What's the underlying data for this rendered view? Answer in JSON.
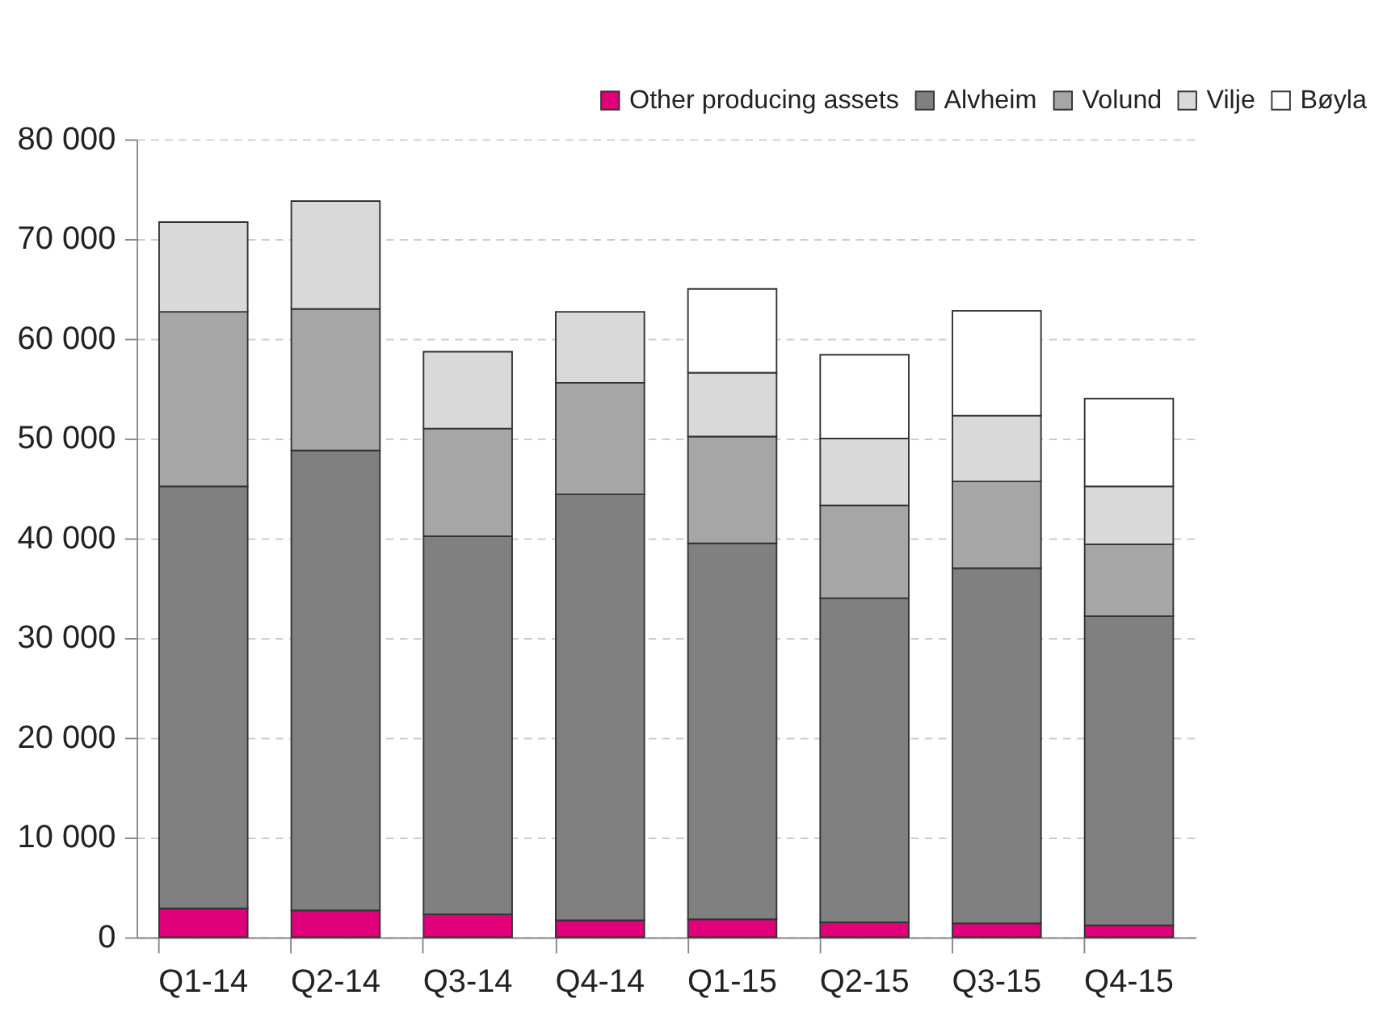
{
  "chart_data": {
    "type": "bar",
    "stacked": true,
    "categories": [
      "Q1-14",
      "Q2-14",
      "Q3-14",
      "Q4-14",
      "Q1-15",
      "Q2-15",
      "Q3-15",
      "Q4-15"
    ],
    "series": [
      {
        "name": "Other producing assets",
        "color": "#e0007a",
        "values": [
          2900,
          2700,
          2300,
          1700,
          1800,
          1500,
          1400,
          1200
        ]
      },
      {
        "name": "Alvheim",
        "color": "#808080",
        "values": [
          42300,
          46100,
          37900,
          42700,
          37700,
          32500,
          35600,
          31000
        ]
      },
      {
        "name": "Volund",
        "color": "#a6a6a6",
        "values": [
          17500,
          14200,
          10800,
          11200,
          10700,
          9300,
          8700,
          7200
        ]
      },
      {
        "name": "Vilje",
        "color": "#d9d9d9",
        "values": [
          9000,
          10800,
          7700,
          7100,
          6400,
          6700,
          6600,
          5800
        ]
      },
      {
        "name": "Bøyla",
        "color": "#ffffff",
        "values": [
          null,
          null,
          null,
          null,
          8400,
          8400,
          10500,
          8800
        ]
      }
    ],
    "ylim": [
      0,
      80000
    ],
    "yticks": [
      {
        "value": 0,
        "label": "0"
      },
      {
        "value": 10000,
        "label": "10 000"
      },
      {
        "value": 20000,
        "label": "20 000"
      },
      {
        "value": 30000,
        "label": "30 000"
      },
      {
        "value": 40000,
        "label": "40 000"
      },
      {
        "value": 50000,
        "label": "50 000"
      },
      {
        "value": 60000,
        "label": "60 000"
      },
      {
        "value": 70000,
        "label": "70 000"
      },
      {
        "value": 80000,
        "label": "80 000"
      }
    ],
    "grid": "y",
    "legend": "top right"
  }
}
